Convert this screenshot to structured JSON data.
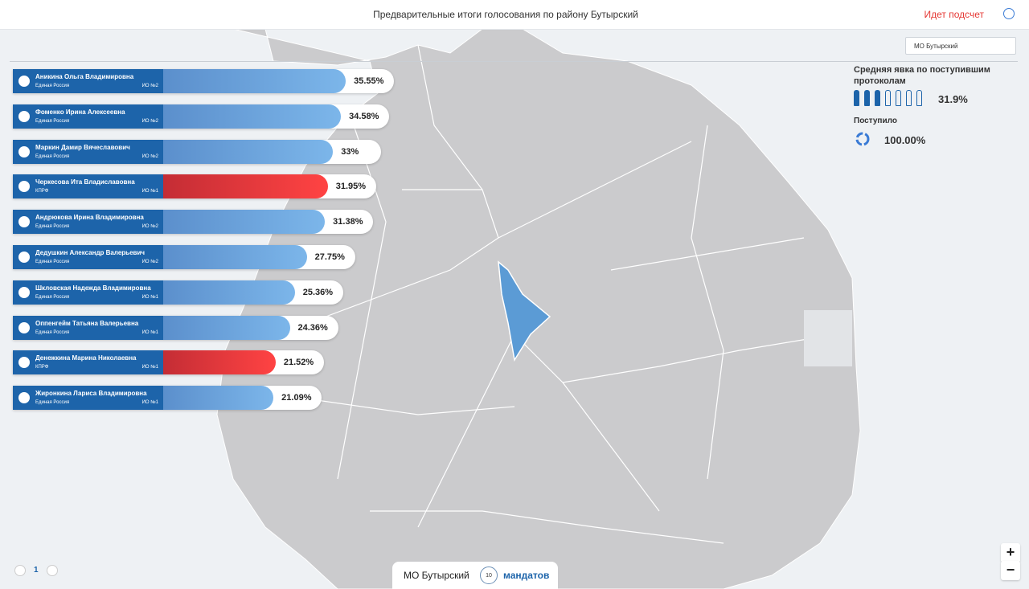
{
  "header": {
    "title": "Предварительные итоги голосования по району Бутырский",
    "status": "Идет подсчет"
  },
  "district_select": "МО Бутырский",
  "candidates": [
    {
      "name": "Аникина Ольга Владимировна",
      "party": "Единая Россия",
      "district": "ИО №2",
      "share": {
        "value": 35.55,
        "label": "35.55%"
      },
      "color": "#7cb6ea"
    },
    {
      "name": "Фоменко Ирина Алексеевна",
      "party": "Единая Россия",
      "district": "ИО №2",
      "share": {
        "value": 34.58,
        "label": "34.58%"
      },
      "color": "#7cb6ea"
    },
    {
      "name": "Маркин Дамир Вячеславович",
      "party": "Единая Россия",
      "district": "ИО №2",
      "share": {
        "value": 33,
        "label": "33%"
      },
      "color": "#7cb6ea"
    },
    {
      "name": "Черкесова Ита Владиславовна",
      "party": "КПРФ",
      "district": "ИО №1",
      "share": {
        "value": 31.95,
        "label": "31.95%"
      },
      "color": "#ff4343"
    },
    {
      "name": "Андрюкова Ирина Владимировна",
      "party": "Единая Россия",
      "district": "ИО №2",
      "share": {
        "value": 31.38,
        "label": "31.38%"
      },
      "color": "#7cb6ea"
    },
    {
      "name": "Дедушкин Александр Валерьевич",
      "party": "Единая Россия",
      "district": "ИО №2",
      "share": {
        "value": 27.75,
        "label": "27.75%"
      },
      "color": "#7cb6ea"
    },
    {
      "name": "Шкловская Надежда Владимировна",
      "party": "Единая Россия",
      "district": "ИО №1",
      "share": {
        "value": 25.36,
        "label": "25.36%"
      },
      "color": "#7cb6ea"
    },
    {
      "name": "Оппенгейм Татьяна Валерьевна",
      "party": "Единая Россия",
      "district": "ИО №1",
      "share": {
        "value": 24.36,
        "label": "24.36%"
      },
      "color": "#7cb6ea"
    },
    {
      "name": "Денежкина Марина Николаевна",
      "party": "КПРФ",
      "district": "ИО №1",
      "share": {
        "value": 21.52,
        "label": "21.52%"
      },
      "color": "#ff4343"
    },
    {
      "name": "Жиронкина Лариса Владимировна",
      "party": "Единая Россия",
      "district": "ИО №1",
      "share": {
        "value": 21.09,
        "label": "21.09%"
      },
      "color": "#7cb6ea"
    }
  ],
  "turnout": {
    "label": "Средняя явка по поступившим протоколам",
    "value": "31.9%"
  },
  "received": {
    "label": "Поступило",
    "value": "100.00%"
  },
  "page": 1,
  "footer": {
    "district": "МО Бутырский",
    "mandates": 10,
    "mandates_label": "мандатов"
  },
  "zoom": {
    "in": "+",
    "out": "−"
  }
}
